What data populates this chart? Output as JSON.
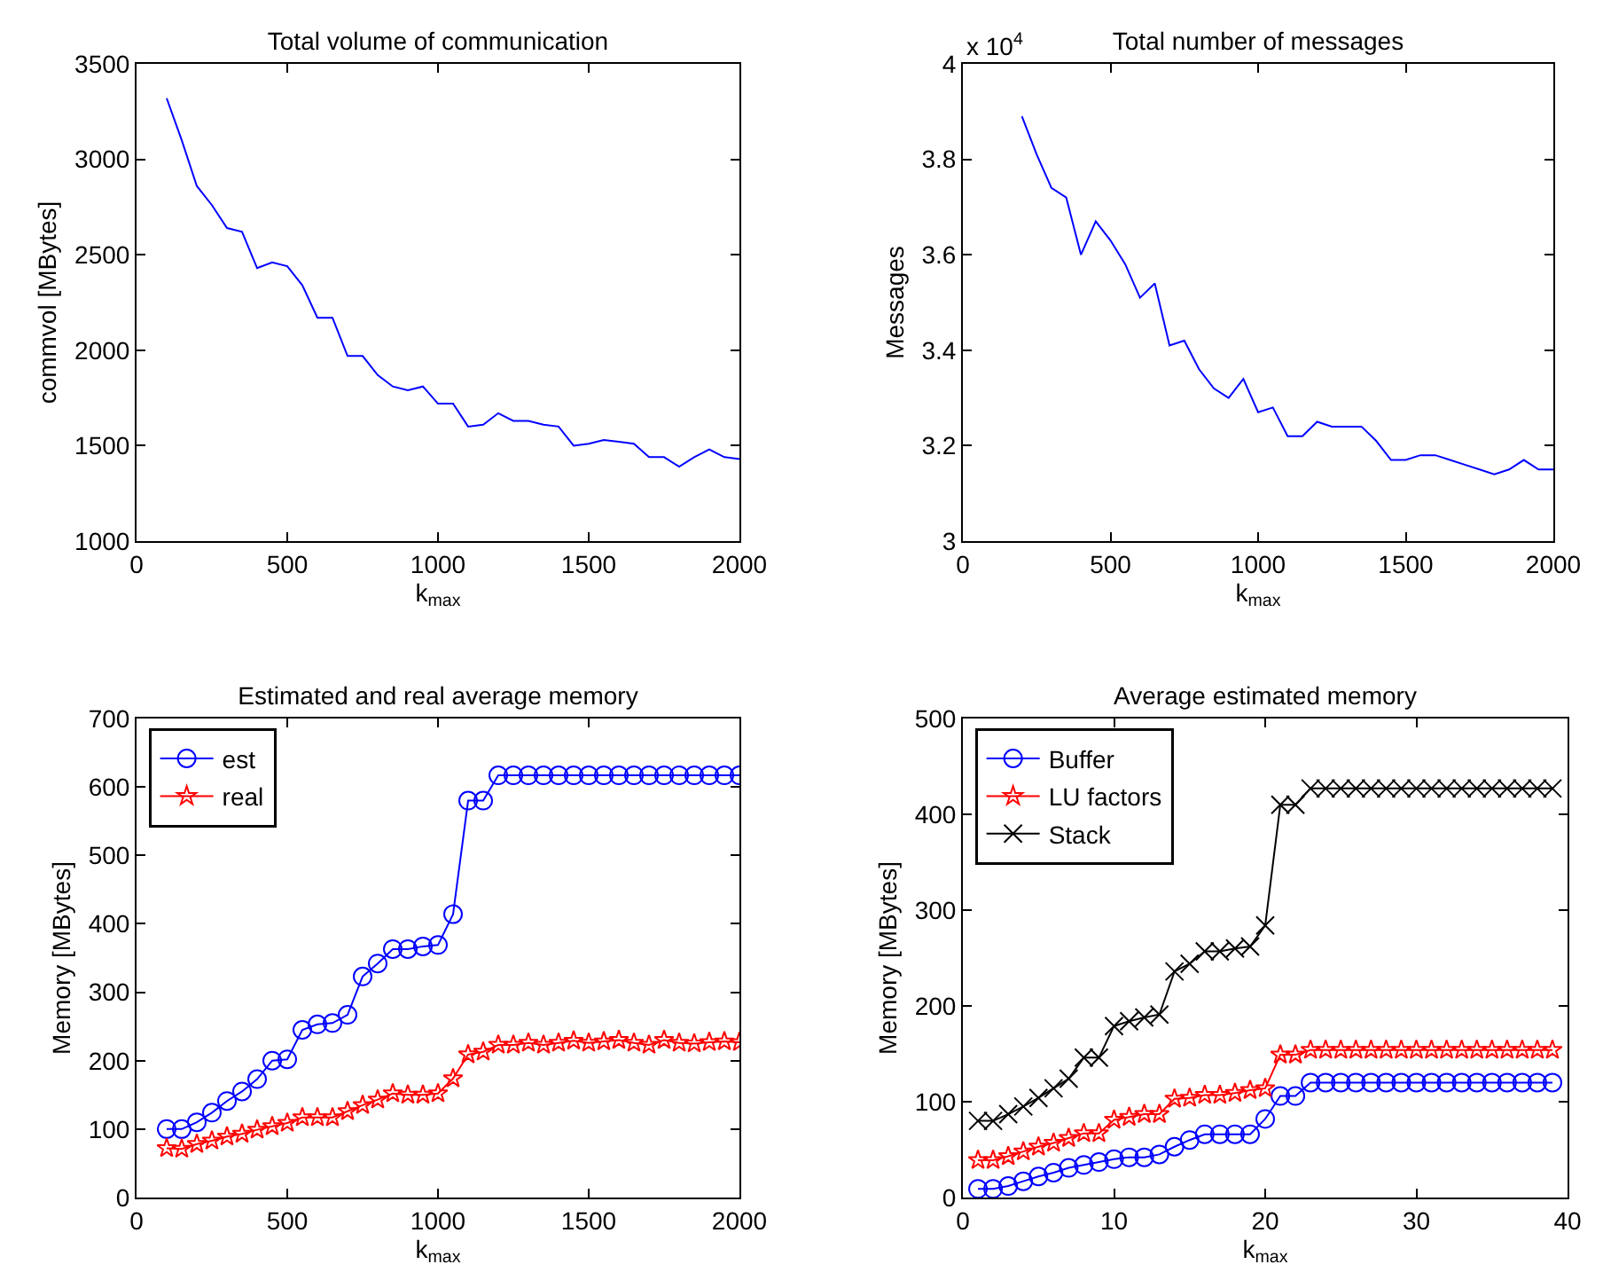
{
  "chart_data": [
    {
      "type": "line",
      "title": "Total volume of communication",
      "xlabel": "k$_{max}$",
      "ylabel": "commvol [MBytes]",
      "x": [
        100,
        150,
        200,
        250,
        300,
        350,
        400,
        450,
        500,
        550,
        600,
        650,
        700,
        750,
        800,
        850,
        900,
        950,
        1000,
        1050,
        1100,
        1150,
        1200,
        1250,
        1300,
        1350,
        1400,
        1450,
        1500,
        1550,
        1600,
        1650,
        1700,
        1750,
        1800,
        1850,
        1900,
        1950,
        2000
      ],
      "series": [
        {
          "color": "#0000ff",
          "values": [
            3320,
            3100,
            2860,
            2760,
            2640,
            2620,
            2430,
            2460,
            2440,
            2340,
            2170,
            2170,
            1970,
            1970,
            1870,
            1810,
            1790,
            1810,
            1720,
            1720,
            1600,
            1610,
            1670,
            1630,
            1630,
            1610,
            1600,
            1500,
            1510,
            1530,
            1520,
            1510,
            1440,
            1440,
            1390,
            1440,
            1480,
            1440,
            1430
          ]
        }
      ],
      "xlim": [
        0,
        2000
      ],
      "xticks": [
        0,
        500,
        1000,
        1500,
        2000
      ],
      "ylim": [
        1000,
        3500
      ],
      "yticks": [
        1000,
        1500,
        2000,
        2500,
        3000,
        3500
      ],
      "grid": false,
      "legend": false
    },
    {
      "type": "line",
      "title": "Total number of messages",
      "xlabel": "k$_{max}$",
      "ylabel": "Messages",
      "annotations": [
        "x 10$^{4}$"
      ],
      "x": [
        200,
        250,
        300,
        350,
        400,
        450,
        500,
        550,
        600,
        650,
        700,
        750,
        800,
        850,
        900,
        950,
        1000,
        1050,
        1100,
        1150,
        1200,
        1250,
        1300,
        1350,
        1400,
        1450,
        1500,
        1550,
        1600,
        1650,
        1700,
        1750,
        1800,
        1850,
        1900,
        1950,
        2000
      ],
      "series": [
        {
          "color": "#0000ff",
          "values": [
            3.89,
            3.81,
            3.74,
            3.72,
            3.6,
            3.67,
            3.63,
            3.58,
            3.51,
            3.54,
            3.41,
            3.42,
            3.36,
            3.32,
            3.3,
            3.34,
            3.27,
            3.28,
            3.22,
            3.22,
            3.25,
            3.24,
            3.24,
            3.24,
            3.21,
            3.17,
            3.17,
            3.18,
            3.18,
            3.17,
            3.16,
            3.15,
            3.14,
            3.15,
            3.17,
            3.15,
            3.15
          ]
        }
      ],
      "xlim": [
        0,
        2000
      ],
      "xticks": [
        0,
        500,
        1000,
        1500,
        2000
      ],
      "ylim": [
        3,
        4
      ],
      "yticks": [
        3,
        3.2,
        3.4,
        3.6,
        3.8,
        4
      ],
      "grid": false,
      "legend": false
    },
    {
      "type": "line",
      "title": "Estimated and real average memory",
      "xlabel": "k$_{max}$",
      "ylabel": "Memory [MBytes]",
      "x": [
        100,
        150,
        200,
        250,
        300,
        350,
        400,
        450,
        500,
        550,
        600,
        650,
        700,
        750,
        800,
        850,
        900,
        950,
        1000,
        1050,
        1100,
        1150,
        1200,
        1250,
        1300,
        1350,
        1400,
        1450,
        1500,
        1550,
        1600,
        1650,
        1700,
        1750,
        1800,
        1850,
        1900,
        1950,
        2000
      ],
      "series": [
        {
          "name": "est",
          "color": "#0000ff",
          "marker": "circle",
          "values": [
            100,
            100,
            110,
            124,
            141,
            155,
            173,
            200,
            202,
            245,
            253,
            255,
            267,
            323,
            342,
            363,
            363,
            367,
            369,
            414,
            580,
            580,
            617,
            617,
            617,
            617,
            617,
            617,
            617,
            617,
            617,
            617,
            617,
            617,
            617,
            617,
            617,
            617,
            617
          ]
        },
        {
          "name": "real",
          "color": "#ff0000",
          "marker": "star",
          "values": [
            72,
            71,
            78,
            83,
            89,
            93,
            99,
            104,
            109,
            117,
            117,
            117,
            126,
            135,
            143,
            152,
            150,
            150,
            152,
            174,
            209,
            213,
            223,
            223,
            226,
            223,
            226,
            229,
            226,
            228,
            230,
            226,
            223,
            230,
            226,
            225,
            227,
            228,
            227
          ]
        }
      ],
      "xlim": [
        0,
        2000
      ],
      "xticks": [
        0,
        500,
        1000,
        1500,
        2000
      ],
      "ylim": [
        0,
        700
      ],
      "yticks": [
        0,
        100,
        200,
        300,
        400,
        500,
        600,
        700
      ],
      "grid": false,
      "legend": "top left"
    },
    {
      "type": "line",
      "title": "Average estimated memory",
      "xlabel": "k$_{max}$",
      "ylabel": "Memory [MBytes]",
      "x": [
        1,
        2,
        3,
        4,
        5,
        6,
        7,
        8,
        9,
        10,
        11,
        12,
        13,
        14,
        15,
        16,
        17,
        18,
        19,
        20,
        21,
        22,
        23,
        24,
        25,
        26,
        27,
        28,
        29,
        30,
        31,
        32,
        33,
        34,
        35,
        36,
        37,
        38,
        39
      ],
      "series": [
        {
          "name": "Buffer",
          "color": "#0000ff",
          "marker": "circle",
          "values": [
            9,
            9,
            12,
            17,
            22,
            26,
            31,
            34,
            37,
            40,
            42,
            42,
            45,
            53,
            60,
            66,
            66,
            66,
            66,
            82,
            106,
            106,
            120,
            120,
            120,
            120,
            120,
            120,
            120,
            120,
            120,
            120,
            120,
            120,
            120,
            120,
            120,
            120,
            120
          ]
        },
        {
          "name": "LU factors",
          "color": "#ff0000",
          "marker": "star",
          "values": [
            39,
            39,
            43,
            48,
            53,
            57,
            62,
            67,
            67,
            81,
            84,
            87,
            87,
            103,
            104,
            107,
            107,
            109,
            112,
            114,
            149,
            149,
            154,
            154,
            154,
            154,
            154,
            154,
            154,
            154,
            154,
            154,
            154,
            154,
            154,
            154,
            154,
            154,
            154
          ]
        },
        {
          "name": "Stack",
          "color": "#000000",
          "marker": "cross",
          "values": [
            80,
            80,
            87,
            95,
            104,
            114,
            124,
            146,
            146,
            179,
            184,
            188,
            191,
            236,
            244,
            257,
            257,
            260,
            262,
            284,
            410,
            410,
            427,
            427,
            427,
            427,
            427,
            427,
            427,
            427,
            427,
            427,
            427,
            427,
            427,
            427,
            427,
            427,
            427
          ]
        }
      ],
      "xlim": [
        0,
        40
      ],
      "xticks": [
        0,
        10,
        20,
        30,
        40
      ],
      "ylim": [
        0,
        500
      ],
      "yticks": [
        0,
        100,
        200,
        300,
        400,
        500
      ],
      "grid": false,
      "legend": "top left"
    }
  ]
}
